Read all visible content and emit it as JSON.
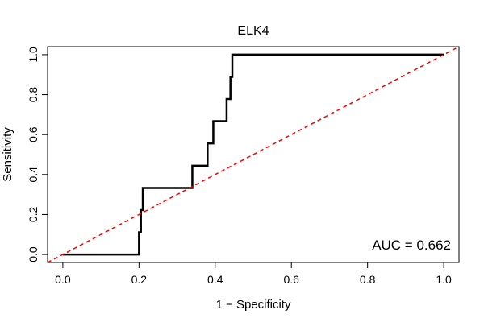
{
  "chart_data": {
    "type": "line",
    "title": "ELK4",
    "xlabel": "1 − Specificity",
    "ylabel": "Sensitivity",
    "xlim": [
      -0.04,
      1.04
    ],
    "ylim": [
      -0.04,
      1.04
    ],
    "x_ticks": [
      "0.0",
      "0.2",
      "0.4",
      "0.6",
      "0.8",
      "1.0"
    ],
    "y_ticks": [
      "0.0",
      "0.2",
      "0.4",
      "0.6",
      "0.8",
      "1.0"
    ],
    "grid": false,
    "annotation": "AUC = 0.662",
    "annotation_position": "bottom-right",
    "series": [
      {
        "color": "#000000",
        "style": "solid",
        "x": [
          0.0,
          0.2,
          0.2,
          0.205,
          0.205,
          0.21,
          0.21,
          0.34,
          0.34,
          0.38,
          0.38,
          0.395,
          0.395,
          0.43,
          0.43,
          0.44,
          0.44,
          0.445,
          0.445,
          1.0
        ],
        "y": [
          0.0,
          0.0,
          0.111,
          0.111,
          0.222,
          0.222,
          0.333,
          0.333,
          0.444,
          0.444,
          0.556,
          0.556,
          0.667,
          0.667,
          0.778,
          0.778,
          0.889,
          0.889,
          1.0,
          1.0
        ]
      },
      {
        "color": "#ff0000",
        "style": "dashed",
        "x": [
          -0.04,
          1.04
        ],
        "y": [
          -0.04,
          1.04
        ]
      }
    ]
  }
}
